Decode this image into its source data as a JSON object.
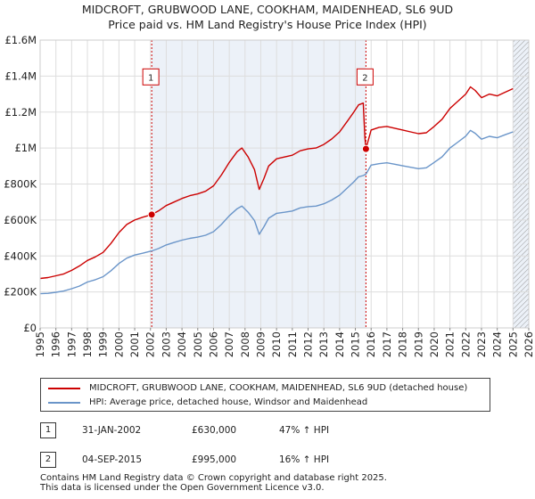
{
  "title": {
    "line1": "MIDCROFT, GRUBWOOD LANE, COOKHAM, MAIDENHEAD, SL6 9UD",
    "line2": "Price paid vs. HM Land Registry's House Price Index (HPI)"
  },
  "chart_data": {
    "type": "line",
    "title": "MIDCROFT, GRUBWOOD LANE, COOKHAM, MAIDENHEAD, SL6 9UD - Price paid vs. HM Land Registry's House Price Index (HPI)",
    "xlabel": "",
    "ylabel": "",
    "xlim": [
      1995,
      2026
    ],
    "ylim": [
      0,
      1600000
    ],
    "grid": true,
    "x_ticks": [
      "1995",
      "1996",
      "1997",
      "1998",
      "1999",
      "2000",
      "2001",
      "2002",
      "2003",
      "2004",
      "2005",
      "2006",
      "2007",
      "2008",
      "2009",
      "2010",
      "2011",
      "2012",
      "2013",
      "2014",
      "2015",
      "2016",
      "2017",
      "2018",
      "2019",
      "2020",
      "2021",
      "2022",
      "2023",
      "2024",
      "2025",
      "2026"
    ],
    "y_ticks": [
      {
        "value": 0,
        "label": "£0"
      },
      {
        "value": 200000,
        "label": "£200K"
      },
      {
        "value": 400000,
        "label": "£400K"
      },
      {
        "value": 600000,
        "label": "£600K"
      },
      {
        "value": 800000,
        "label": "£800K"
      },
      {
        "value": 1000000,
        "label": "£1M"
      },
      {
        "value": 1200000,
        "label": "£1.2M"
      },
      {
        "value": 1400000,
        "label": "£1.4M"
      },
      {
        "value": 1600000,
        "label": "£1.6M"
      }
    ],
    "shaded_ranges": [
      {
        "from": 2002.08,
        "to": 2015.67
      },
      {
        "from": 2025.0,
        "to": 2026.0
      }
    ],
    "hatched_from": 2025.0,
    "series": [
      {
        "name": "MIDCROFT, GRUBWOOD LANE, COOKHAM, MAIDENHEAD, SL6 9UD (detached house)",
        "color": "#cc0000",
        "x": [
          1995.0,
          1995.5,
          1996.0,
          1996.5,
          1997.0,
          1997.5,
          1998.0,
          1998.5,
          1999.0,
          1999.5,
          2000.0,
          2000.5,
          2001.0,
          2001.5,
          2002.08,
          2002.5,
          2003.0,
          2003.5,
          2004.0,
          2004.5,
          2005.0,
          2005.5,
          2006.0,
          2006.5,
          2007.0,
          2007.5,
          2007.8,
          2008.2,
          2008.6,
          2008.9,
          2009.2,
          2009.5,
          2010.0,
          2010.5,
          2011.0,
          2011.5,
          2012.0,
          2012.5,
          2013.0,
          2013.5,
          2014.0,
          2014.5,
          2014.9,
          2015.2,
          2015.5,
          2015.6,
          2015.67,
          2016.0,
          2016.5,
          2017.0,
          2017.5,
          2018.0,
          2018.5,
          2019.0,
          2019.5,
          2020.0,
          2020.5,
          2021.0,
          2021.5,
          2022.0,
          2022.3,
          2022.6,
          2023.0,
          2023.5,
          2024.0,
          2024.5,
          2025.0
        ],
        "values": [
          275000,
          280000,
          290000,
          300000,
          320000,
          345000,
          375000,
          395000,
          420000,
          470000,
          530000,
          575000,
          600000,
          615000,
          630000,
          650000,
          680000,
          700000,
          720000,
          735000,
          745000,
          760000,
          790000,
          850000,
          920000,
          980000,
          1000000,
          950000,
          880000,
          770000,
          830000,
          900000,
          940000,
          950000,
          960000,
          985000,
          995000,
          1000000,
          1020000,
          1050000,
          1090000,
          1150000,
          1200000,
          1240000,
          1250000,
          1060000,
          995000,
          1100000,
          1115000,
          1120000,
          1110000,
          1100000,
          1090000,
          1080000,
          1085000,
          1120000,
          1160000,
          1220000,
          1260000,
          1300000,
          1340000,
          1320000,
          1280000,
          1300000,
          1290000,
          1310000,
          1330000
        ]
      },
      {
        "name": "HPI: Average price, detached house, Windsor and Maidenhead",
        "color": "#6a95c9",
        "x": [
          1995.0,
          1995.5,
          1996.0,
          1996.5,
          1997.0,
          1997.5,
          1998.0,
          1998.5,
          1999.0,
          1999.5,
          2000.0,
          2000.5,
          2001.0,
          2001.5,
          2002.08,
          2002.5,
          2003.0,
          2003.5,
          2004.0,
          2004.5,
          2005.0,
          2005.5,
          2006.0,
          2006.5,
          2007.0,
          2007.5,
          2007.8,
          2008.2,
          2008.6,
          2008.9,
          2009.2,
          2009.5,
          2010.0,
          2010.5,
          2011.0,
          2011.5,
          2012.0,
          2012.5,
          2013.0,
          2013.5,
          2014.0,
          2014.5,
          2014.9,
          2015.2,
          2015.5,
          2015.67,
          2016.0,
          2016.5,
          2017.0,
          2017.5,
          2018.0,
          2018.5,
          2019.0,
          2019.5,
          2020.0,
          2020.5,
          2021.0,
          2021.5,
          2022.0,
          2022.3,
          2022.6,
          2023.0,
          2023.5,
          2024.0,
          2024.5,
          2025.0
        ],
        "values": [
          190000,
          192000,
          198000,
          205000,
          218000,
          233000,
          255000,
          268000,
          285000,
          318000,
          358000,
          388000,
          405000,
          415000,
          428000,
          441000,
          461000,
          475000,
          488000,
          498000,
          505000,
          515000,
          535000,
          575000,
          623000,
          663000,
          677000,
          643000,
          597000,
          520000,
          562000,
          610000,
          637000,
          643000,
          650000,
          667000,
          674000,
          677000,
          690000,
          711000,
          738000,
          779000,
          812000,
          840000,
          847000,
          855000,
          905000,
          913000,
          918000,
          910000,
          901000,
          893000,
          885000,
          890000,
          920000,
          951000,
          1000000,
          1033000,
          1066000,
          1098000,
          1082000,
          1049000,
          1065000,
          1057000,
          1074000,
          1090000
        ]
      }
    ],
    "transactions": [
      {
        "label": "1",
        "date": "31-JAN-2002",
        "x": 2002.08,
        "price": 630000,
        "price_label": "£630,000",
        "hpi": "47% ↑ HPI"
      },
      {
        "label": "2",
        "date": "04-SEP-2015",
        "x": 2015.67,
        "price": 995000,
        "price_label": "£995,000",
        "hpi": "16% ↑ HPI"
      }
    ],
    "legend_position": "bottom"
  },
  "footer": {
    "line1": "Contains HM Land Registry data © Crown copyright and database right 2025.",
    "line2": "This data is licensed under the Open Government Licence v3.0."
  }
}
